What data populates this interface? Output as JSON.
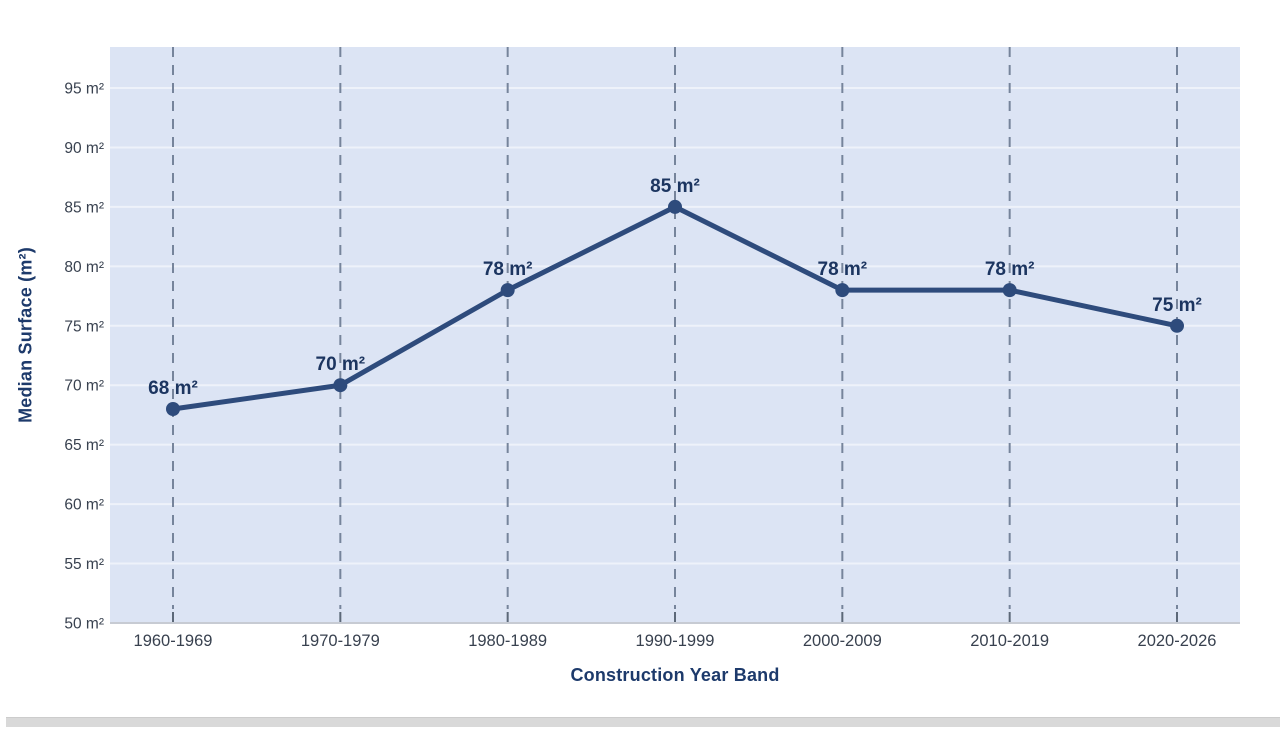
{
  "page": {
    "background": "#ffffff",
    "bottom_bar_color": "#d9d9d9"
  },
  "chart_data": {
    "type": "line",
    "title": "",
    "xlabel": "Construction Year Band",
    "ylabel": "Median Surface (m²)",
    "categories": [
      "1960-1969",
      "1970-1979",
      "1980-1989",
      "1990-1999",
      "2000-2009",
      "2010-2019",
      "2020-2026"
    ],
    "series": [
      {
        "name": "Median Surface",
        "values": [
          68,
          70,
          78,
          85,
          78,
          78,
          75
        ],
        "point_labels": [
          "68 m²",
          "70 m²",
          "78 m²",
          "85 m²",
          "78 m²",
          "78 m²",
          "75 m²"
        ]
      }
    ],
    "y_ticks": [
      {
        "value": 50,
        "label": "50 m²"
      },
      {
        "value": 55,
        "label": "55 m²"
      },
      {
        "value": 60,
        "label": "60 m²"
      },
      {
        "value": 65,
        "label": "65 m²"
      },
      {
        "value": 70,
        "label": "70 m²"
      },
      {
        "value": 75,
        "label": "75 m²"
      },
      {
        "value": 80,
        "label": "80 m²"
      },
      {
        "value": 85,
        "label": "85 m²"
      },
      {
        "value": 90,
        "label": "90 m²"
      },
      {
        "value": 95,
        "label": "95 m²"
      }
    ],
    "ylim": [
      50,
      98.45
    ],
    "grid": {
      "horizontal": true,
      "vertical": "dashed"
    },
    "legend_position": "none",
    "colors": {
      "line": "#2e4b7c",
      "marker": "#2e4b7c",
      "plot_bg": "#dce4f4",
      "h_grid": "#eef2fa",
      "v_grid": "#6b7a92",
      "v_grid_stub": "#5c6878",
      "axis_line": "#c7cbd3",
      "tick_label": "#38414f",
      "data_label": "#1c3560",
      "axis_title": "#1d3a6b"
    }
  }
}
